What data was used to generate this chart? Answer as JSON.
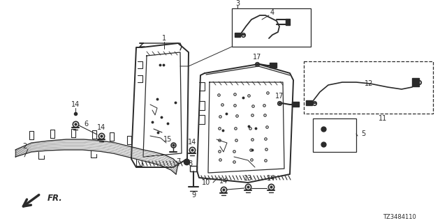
{
  "bg_color": "#ffffff",
  "lc": "#2a2a2a",
  "diagram_code": "TZ3484110",
  "figsize": [
    6.4,
    3.2
  ],
  "dpi": 100
}
